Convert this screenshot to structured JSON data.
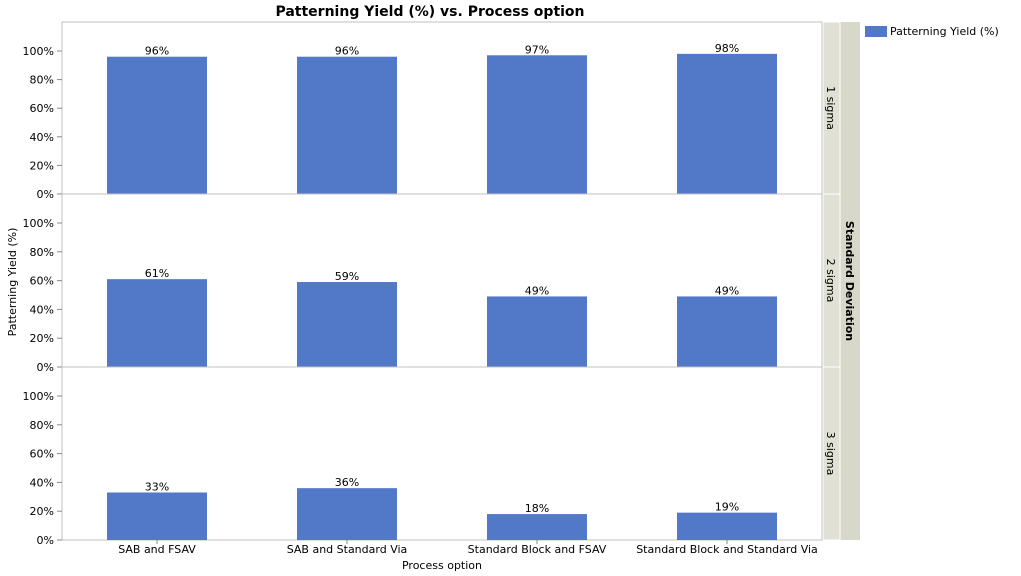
{
  "chart_data": {
    "type": "bar",
    "title": "Patterning Yield (%) vs. Process option",
    "xlabel": "Process option",
    "ylabel": "Patterning Yield (%)",
    "ylim": [
      0,
      100
    ],
    "yticks": [
      "0%",
      "20%",
      "40%",
      "60%",
      "80%",
      "100%"
    ],
    "categories": [
      "SAB and FSAV",
      "SAB and Standard Via",
      "Standard Block and FSAV",
      "Standard Block and Standard Via"
    ],
    "facet_label": "Standard Deviation",
    "facets": [
      {
        "name": "1 sigma",
        "values": [
          96,
          96,
          97,
          98
        ],
        "labels": [
          "96%",
          "96%",
          "97%",
          "98%"
        ]
      },
      {
        "name": "2 sigma",
        "values": [
          61,
          59,
          49,
          49
        ],
        "labels": [
          "61%",
          "59%",
          "49%",
          "49%"
        ]
      },
      {
        "name": "3 sigma",
        "values": [
          33,
          36,
          18,
          19
        ],
        "labels": [
          "33%",
          "36%",
          "18%",
          "19%"
        ]
      }
    ],
    "legend": {
      "position": "top-right",
      "entries": [
        "Patterning Yield (%)"
      ]
    },
    "colors": {
      "bar": "#5278C8",
      "strip": "#E0E0D4",
      "strip_outer": "#D8D8CA",
      "grid": "#E0E0E0",
      "frame": "#C0C0C0"
    },
    "grid": false
  }
}
